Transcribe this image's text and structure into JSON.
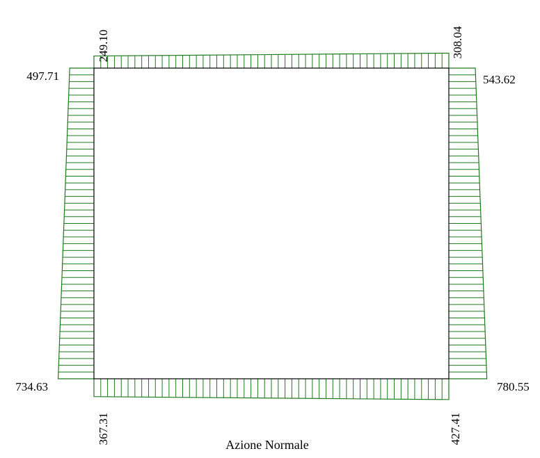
{
  "caption": "Azione Normale",
  "colors": {
    "frame": "#000000",
    "diagram": "#1f7a1f",
    "background": "#ffffff"
  },
  "members": {
    "top": {
      "start_value": 249.1,
      "end_value": 308.04,
      "start_label": "249.10",
      "end_label": "308.04"
    },
    "bottom": {
      "start_value": 367.31,
      "end_value": 427.41,
      "start_label": "367.31",
      "end_label": "427.41"
    },
    "left": {
      "start_value": 497.71,
      "end_value": 734.63,
      "start_label": "497.71",
      "end_label": "734.63"
    },
    "right": {
      "start_value": 543.62,
      "end_value": 780.55,
      "start_label": "543.62",
      "end_label": "780.55"
    }
  }
}
